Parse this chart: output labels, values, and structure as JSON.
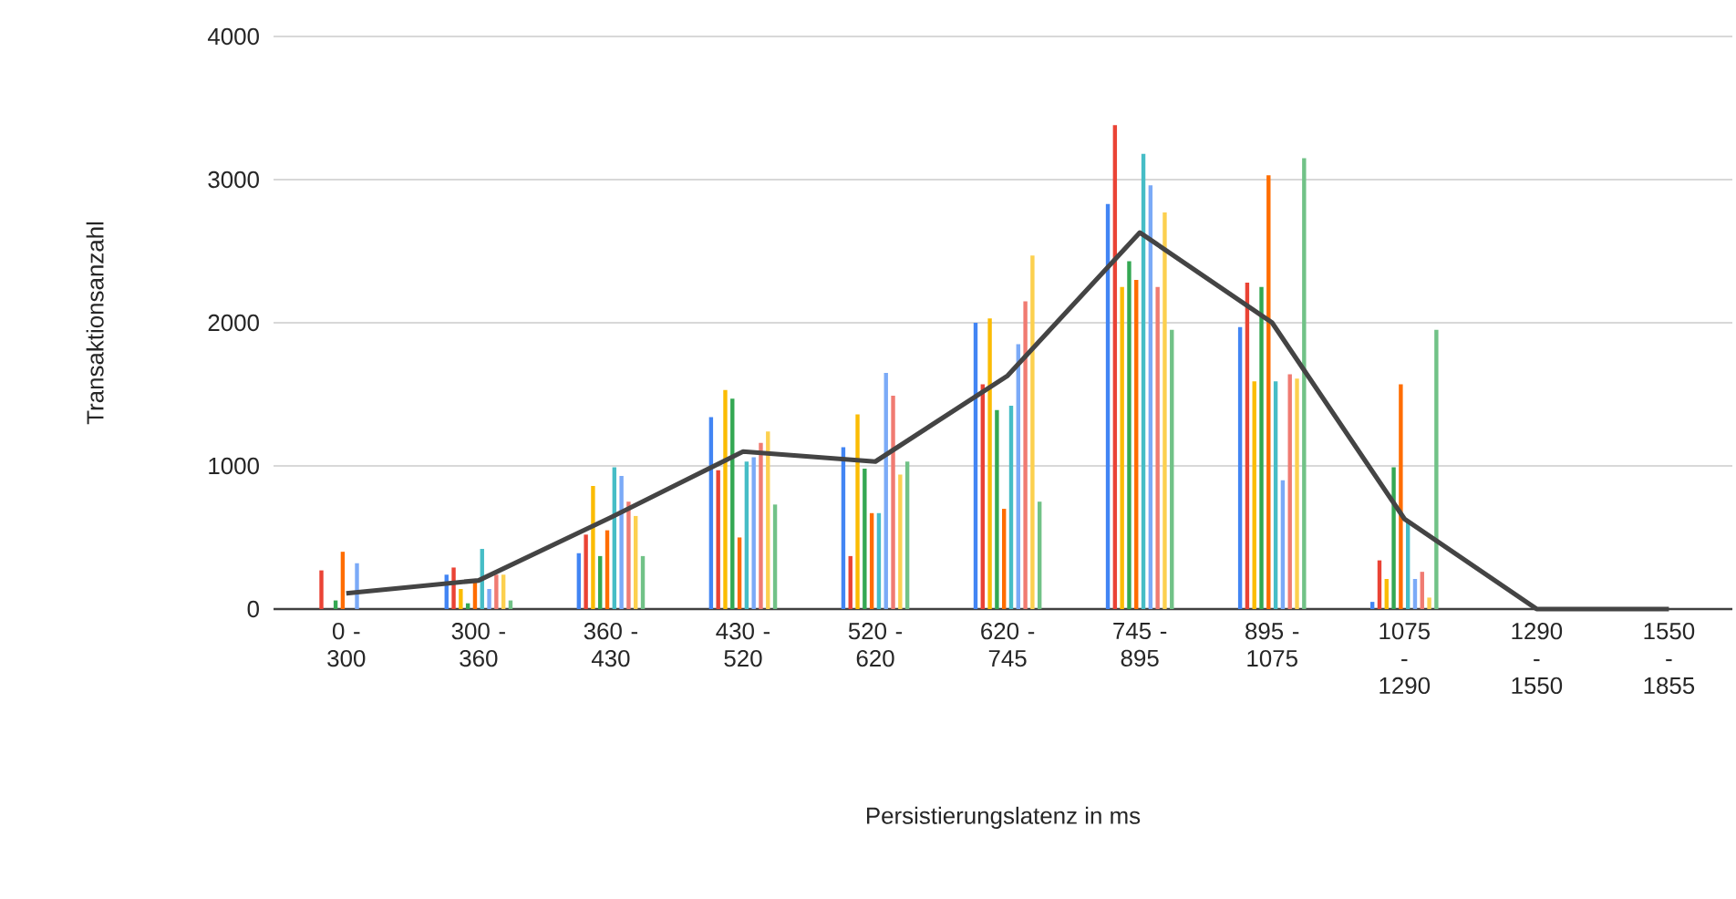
{
  "chart_data": {
    "type": "bar",
    "xlabel": "Persistierungslatenz in ms",
    "ylabel": "Transaktionsanzahl",
    "categories": [
      "0 - 300",
      "300 - 360",
      "360 - 430",
      "430 - 520",
      "520 - 620",
      "620 - 745",
      "745 - 895",
      "895 - 1075",
      "1075 - 1290",
      "1290 - 1550",
      "1550 - 1855"
    ],
    "ylim": [
      0,
      4000
    ],
    "yticks": [
      0,
      1000,
      2000,
      3000,
      4000
    ],
    "grid": "y",
    "series": [
      {
        "color": "#4285f4",
        "values": [
          0,
          240,
          390,
          1340,
          1130,
          2000,
          2830,
          1970,
          50,
          0,
          0
        ]
      },
      {
        "color": "#ea4335",
        "values": [
          270,
          290,
          520,
          970,
          370,
          1570,
          3380,
          2280,
          340,
          0,
          0
        ]
      },
      {
        "color": "#fbbc04",
        "values": [
          0,
          140,
          860,
          1530,
          1360,
          2030,
          2250,
          1590,
          210,
          0,
          0
        ]
      },
      {
        "color": "#34a853",
        "values": [
          60,
          40,
          370,
          1470,
          980,
          1390,
          2430,
          2250,
          990,
          0,
          0
        ]
      },
      {
        "color": "#ff6d01",
        "values": [
          400,
          200,
          550,
          500,
          670,
          700,
          2300,
          3030,
          1570,
          0,
          0
        ]
      },
      {
        "color": "#46bdc6",
        "values": [
          0,
          420,
          990,
          1030,
          670,
          1420,
          3180,
          1590,
          620,
          0,
          0
        ]
      },
      {
        "color": "#7baaf7",
        "values": [
          320,
          140,
          930,
          1060,
          1650,
          1850,
          2960,
          900,
          210,
          0,
          0
        ]
      },
      {
        "color": "#f07b72",
        "values": [
          0,
          240,
          750,
          1160,
          1490,
          2150,
          2250,
          1640,
          260,
          0,
          0
        ]
      },
      {
        "color": "#fcd04f",
        "values": [
          0,
          240,
          650,
          1240,
          940,
          2470,
          2770,
          1610,
          80,
          0,
          0
        ]
      },
      {
        "color": "#71c287",
        "values": [
          0,
          60,
          370,
          730,
          1030,
          750,
          1950,
          3150,
          1950,
          0,
          0
        ]
      },
      {
        "type": "line",
        "color": "#444444",
        "values": [
          110,
          200,
          640,
          1100,
          1030,
          1630,
          2630,
          2000,
          630,
          0,
          0
        ]
      }
    ]
  }
}
